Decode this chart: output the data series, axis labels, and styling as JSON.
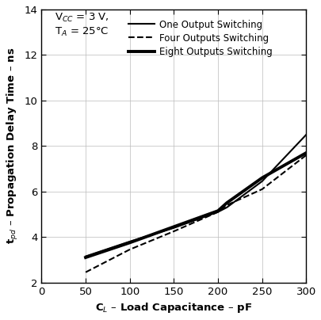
{
  "xlabel": "C$_L$ – Load Capacitance – pF",
  "ylabel": "t$_{pd}$ – Propagation Delay Time – ns",
  "xlim": [
    0,
    300
  ],
  "ylim": [
    2,
    14
  ],
  "xticks": [
    0,
    50,
    100,
    150,
    200,
    250,
    300
  ],
  "yticks": [
    2,
    4,
    6,
    8,
    10,
    12,
    14
  ],
  "annotation_line1": "V$_{CC}$ = 3 V,",
  "annotation_line2": "T$_A$ = 25°C",
  "one_output": {
    "x": [
      50,
      100,
      150,
      200,
      210,
      250,
      300
    ],
    "y": [
      3.15,
      3.8,
      4.4,
      5.1,
      5.3,
      6.45,
      8.5
    ],
    "style": "-",
    "linewidth": 1.5,
    "color": "#000000",
    "label": "One Output Switching"
  },
  "four_outputs": {
    "x": [
      50,
      100,
      150,
      200,
      210,
      250,
      300
    ],
    "y": [
      2.45,
      3.45,
      4.25,
      5.1,
      5.4,
      6.1,
      7.6
    ],
    "style": "--",
    "linewidth": 1.5,
    "color": "#000000",
    "label": "Four Outputs Switching"
  },
  "eight_outputs": {
    "x": [
      50,
      100,
      150,
      200,
      210,
      250,
      300
    ],
    "y": [
      3.1,
      3.75,
      4.45,
      5.15,
      5.5,
      6.6,
      7.7
    ],
    "style": "-",
    "linewidth": 2.8,
    "color": "#000000",
    "label": "Eight Outputs Switching"
  },
  "background_color": "#ffffff",
  "grid_color": "#bbbbbb"
}
